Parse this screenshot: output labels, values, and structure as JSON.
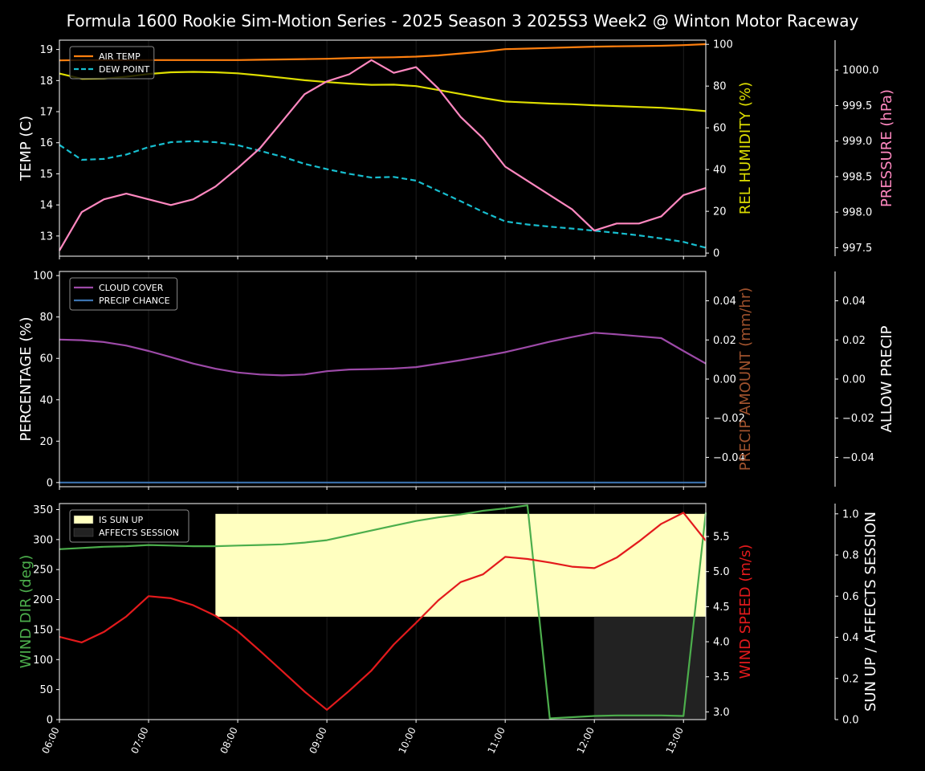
{
  "title": "Formula 1600 Rookie Sim-Motion Series - 2025 Season 3 2025S3 Week2 @ Winton Motor Raceway",
  "x_ticks": [
    "06:00",
    "07:00",
    "08:00",
    "09:00",
    "10:00",
    "11:00",
    "12:00",
    "13:00"
  ],
  "colors": {
    "air_temp": "#ff7f0e",
    "dew_point": "#17becf",
    "humidity": "#dede00",
    "pressure": "#ff88c0",
    "cloud": "#9d4aa8",
    "precip_chance": "#3b73b0",
    "precip_amount": "#a0522d",
    "wind_dir": "#4cae4c",
    "wind_speed": "#e31a1c",
    "sun_up": "#ffffc0",
    "affects": "#222222"
  },
  "chart_data": [
    {
      "type": "line",
      "x": [
        6.0,
        6.25,
        6.5,
        6.75,
        7.0,
        7.25,
        7.5,
        7.75,
        8.0,
        8.25,
        8.5,
        8.75,
        9.0,
        9.25,
        9.5,
        9.75,
        10.0,
        10.25,
        10.5,
        10.75,
        11.0,
        11.25,
        11.5,
        11.75,
        12.0,
        12.25,
        12.5,
        12.75,
        13.0,
        13.25
      ],
      "xlim": [
        6.0,
        13.25
      ],
      "axes": [
        {
          "key": "temp",
          "label": "TEMP (C)",
          "side": "left",
          "ylim": [
            12.35,
            19.3
          ],
          "ticks": [
            13,
            14,
            15,
            16,
            17,
            18,
            19
          ],
          "decimals": 0
        },
        {
          "key": "hum",
          "label": "REL HUMIDITY (%)",
          "side": "right",
          "ylim": [
            -1.5,
            102
          ],
          "ticks": [
            0,
            20,
            40,
            60,
            80,
            100
          ],
          "decimals": 0
        },
        {
          "key": "pres",
          "label": "PRESSURE (hPa)",
          "side": "right2",
          "ylim": [
            997.38,
            1000.42
          ],
          "ticks": [
            997.5,
            998.0,
            998.5,
            999.0,
            999.5,
            1000.0
          ],
          "decimals": 1
        }
      ],
      "series": [
        {
          "name": "AIR TEMP",
          "axis": "temp",
          "legend": true,
          "dash": false,
          "values": [
            18.65,
            18.66,
            18.66,
            18.66,
            18.66,
            18.66,
            18.66,
            18.66,
            18.66,
            18.67,
            18.68,
            18.69,
            18.7,
            18.72,
            18.74,
            18.75,
            18.77,
            18.81,
            18.87,
            18.93,
            19.01,
            19.03,
            19.05,
            19.07,
            19.09,
            19.1,
            19.11,
            19.12,
            19.14,
            19.17
          ]
        },
        {
          "name": "DEW POINT",
          "axis": "temp",
          "legend": true,
          "dash": true,
          "values": [
            15.93,
            15.45,
            15.48,
            15.62,
            15.86,
            16.02,
            16.05,
            16.02,
            15.92,
            15.74,
            15.55,
            15.32,
            15.15,
            15.0,
            14.88,
            14.9,
            14.78,
            14.45,
            14.12,
            13.78,
            13.47,
            13.37,
            13.3,
            13.24,
            13.17,
            13.1,
            13.02,
            12.92,
            12.81,
            12.62
          ]
        },
        {
          "name": "REL HUMIDITY",
          "axis": "hum",
          "legend": false,
          "dash": false,
          "values": [
            86.0,
            83.5,
            83.6,
            84.5,
            85.8,
            86.6,
            86.8,
            86.6,
            86.1,
            85.1,
            84.0,
            82.8,
            81.9,
            81.2,
            80.6,
            80.7,
            80.0,
            78.1,
            76.2,
            74.3,
            72.6,
            72.1,
            71.6,
            71.3,
            70.8,
            70.4,
            70.0,
            69.6,
            68.9,
            68.0
          ]
        },
        {
          "name": "PRESSURE",
          "axis": "pres",
          "legend": false,
          "dash": false,
          "values": [
            997.46,
            998.0,
            998.18,
            998.26,
            998.18,
            998.1,
            998.18,
            998.36,
            998.62,
            998.9,
            999.28,
            999.66,
            999.84,
            999.94,
            1000.14,
            999.96,
            1000.04,
            999.74,
            999.34,
            999.04,
            998.64,
            998.44,
            998.24,
            998.04,
            997.74,
            997.84,
            997.84,
            997.94,
            998.24,
            998.34
          ]
        }
      ]
    },
    {
      "type": "line",
      "x": [
        6.0,
        6.25,
        6.5,
        6.75,
        7.0,
        7.25,
        7.5,
        7.75,
        8.0,
        8.25,
        8.5,
        8.75,
        9.0,
        9.25,
        9.5,
        9.75,
        10.0,
        10.25,
        10.5,
        10.75,
        11.0,
        11.25,
        11.5,
        11.75,
        12.0,
        12.25,
        12.5,
        12.75,
        13.0,
        13.25
      ],
      "xlim": [
        6.0,
        13.25
      ],
      "axes": [
        {
          "key": "pct",
          "label": "PERCENTAGE (%)",
          "side": "left",
          "ylim": [
            -2,
            102
          ],
          "ticks": [
            0,
            20,
            40,
            60,
            80,
            100
          ],
          "decimals": 0
        },
        {
          "key": "amt",
          "label": "PRECIP AMOUNT (mm/hr)",
          "side": "right",
          "ylim": [
            -0.055,
            0.055
          ],
          "ticks": [
            -0.04,
            -0.02,
            0.0,
            0.02,
            0.04
          ],
          "decimals": 2
        },
        {
          "key": "allow",
          "label": "ALLOW PRECIP",
          "side": "right2",
          "ylim": [
            -0.055,
            0.055
          ],
          "ticks": [
            -0.04,
            -0.02,
            0.0,
            0.02,
            0.04
          ],
          "decimals": 2
        }
      ],
      "series": [
        {
          "name": "CLOUD COVER",
          "axis": "pct",
          "legend": true,
          "dash": false,
          "values": [
            69.1,
            68.8,
            67.9,
            66.2,
            63.6,
            60.6,
            57.5,
            55.0,
            53.2,
            52.2,
            51.8,
            52.2,
            53.8,
            54.6,
            54.8,
            55.1,
            55.8,
            57.4,
            59.1,
            61.0,
            63.0,
            65.5,
            68.1,
            70.3,
            72.4,
            71.6,
            70.7,
            69.8,
            63.6,
            57.5
          ]
        },
        {
          "name": "PRECIP CHANCE",
          "axis": "pct",
          "legend": true,
          "dash": false,
          "values": [
            0,
            0,
            0,
            0,
            0,
            0,
            0,
            0,
            0,
            0,
            0,
            0,
            0,
            0,
            0,
            0,
            0,
            0,
            0,
            0,
            0,
            0,
            0,
            0,
            0,
            0,
            0,
            0,
            0,
            0
          ]
        }
      ]
    },
    {
      "type": "line",
      "x": [
        6.0,
        6.25,
        6.5,
        6.75,
        7.0,
        7.25,
        7.5,
        7.75,
        8.0,
        8.25,
        8.5,
        8.75,
        9.0,
        9.25,
        9.5,
        9.75,
        10.0,
        10.25,
        10.5,
        10.75,
        11.0,
        11.25,
        11.5,
        11.75,
        12.0,
        12.25,
        12.5,
        12.75,
        13.0,
        13.25
      ],
      "xlim": [
        6.0,
        13.25
      ],
      "axes": [
        {
          "key": "dir",
          "label": "WIND DIR (deg)",
          "side": "left",
          "ylim": [
            0,
            360
          ],
          "ticks": [
            0,
            50,
            100,
            150,
            200,
            250,
            300,
            350
          ],
          "decimals": 0
        },
        {
          "key": "spd",
          "label": "WIND SPEED (m/s)",
          "side": "right",
          "ylim": [
            2.89,
            5.97
          ],
          "ticks": [
            3.0,
            3.5,
            4.0,
            4.5,
            5.0,
            5.5
          ],
          "decimals": 1
        },
        {
          "key": "sun",
          "label": "SUN UP / AFFECTS SESSION",
          "side": "right2",
          "ylim": [
            0,
            1.05
          ],
          "ticks": [
            0.0,
            0.2,
            0.4,
            0.6,
            0.8,
            1.0
          ],
          "decimals": 1
        }
      ],
      "bands": [
        {
          "name": "IS SUN UP",
          "from": 7.75,
          "to": 13.25,
          "y0": 0.5,
          "y1": 1.0,
          "color": "sun_up"
        },
        {
          "name": "AFFECTS SESSION",
          "from": 12.0,
          "to": 13.25,
          "y0": 0,
          "y1": 0.5,
          "color": "affects"
        }
      ],
      "series": [
        {
          "name": "WIND DIR",
          "axis": "dir",
          "legend": false,
          "dash": false,
          "values": [
            284,
            286,
            288,
            289,
            291,
            290,
            289,
            289,
            290,
            291,
            292,
            295,
            299,
            307,
            315,
            323,
            331,
            337,
            342,
            348,
            352,
            357,
            2,
            4,
            6,
            7,
            7,
            7,
            6,
            345
          ]
        },
        {
          "name": "WIND SPEED",
          "axis": "spd",
          "legend": false,
          "dash": false,
          "values": [
            4.07,
            3.99,
            4.14,
            4.36,
            4.65,
            4.62,
            4.52,
            4.37,
            4.15,
            3.87,
            3.58,
            3.29,
            3.03,
            3.3,
            3.59,
            3.96,
            4.27,
            4.59,
            4.85,
            4.96,
            5.21,
            5.18,
            5.13,
            5.07,
            5.05,
            5.2,
            5.43,
            5.68,
            5.84,
            5.44
          ]
        }
      ]
    }
  ]
}
